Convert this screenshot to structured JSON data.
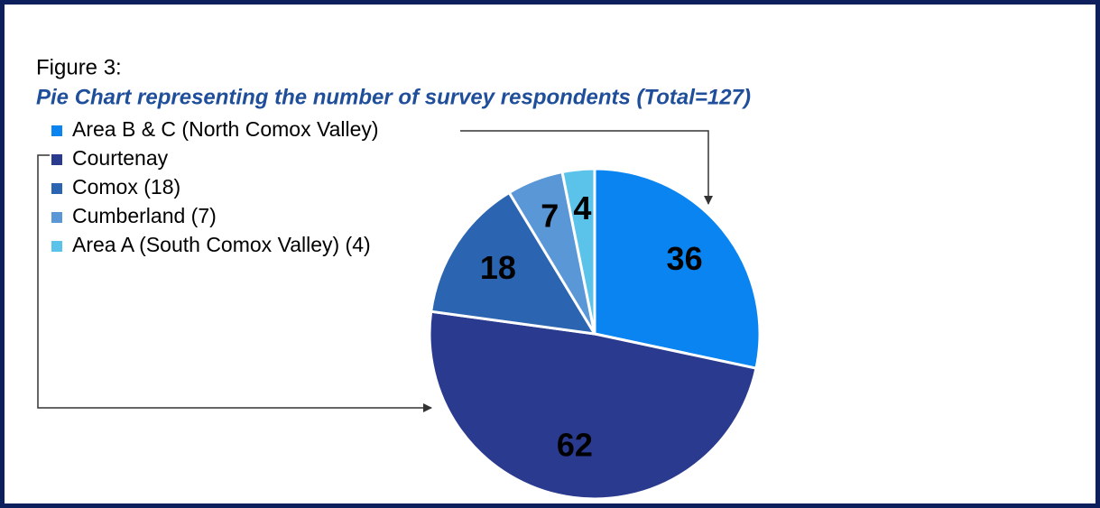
{
  "chart_data": {
    "type": "pie",
    "title": "Figure 3:",
    "subtitle": "Pie Chart representing the number of survey respondents (Total=127)",
    "categories": [
      "Area B & C (North Comox Valley)",
      "Courtenay",
      "Comox (18)",
      "Cumberland (7)",
      "Area A (South Comox Valley) (4)"
    ],
    "values": [
      36,
      62,
      18,
      7,
      4
    ],
    "colors": [
      "#0a84f0",
      "#2a3a8f",
      "#2b64b0",
      "#5a97d6",
      "#5bc3ea"
    ],
    "legend": "top-left"
  }
}
